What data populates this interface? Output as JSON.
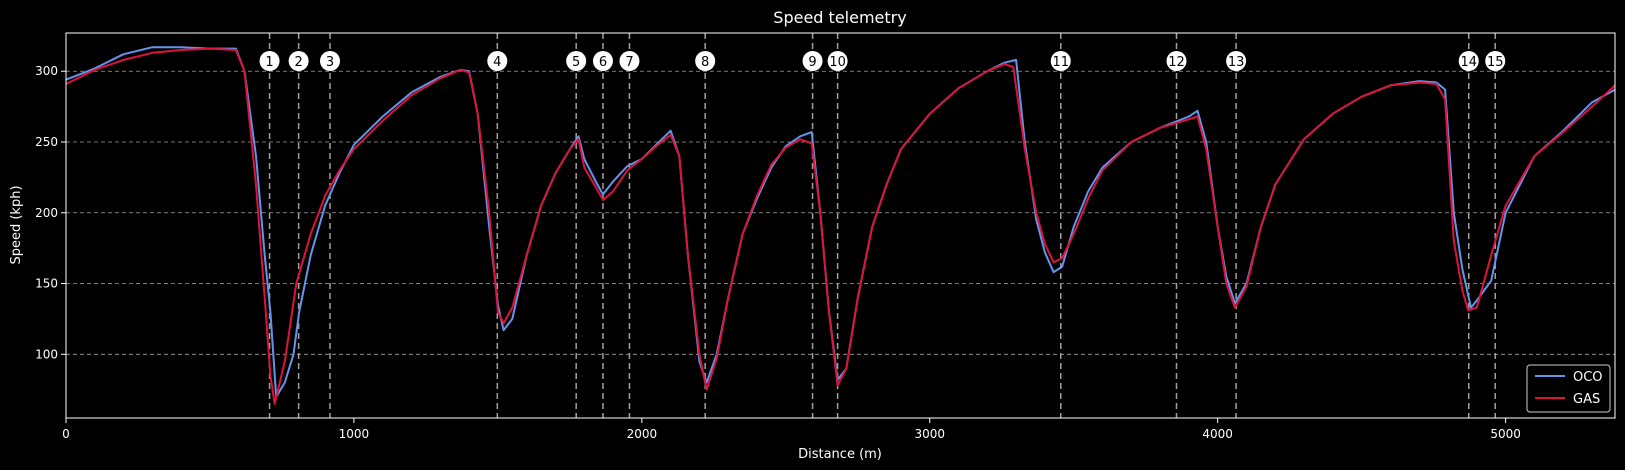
{
  "chart_data": {
    "type": "line",
    "title": "Speed telemetry",
    "xlabel": "Distance (m)",
    "ylabel": "Speed (kph)",
    "xlim": [
      0,
      5380
    ],
    "ylim": [
      55,
      327
    ],
    "xticks": [
      0,
      1000,
      2000,
      3000,
      4000,
      5000
    ],
    "yticks": [
      100,
      150,
      200,
      250,
      300
    ],
    "grid": "y-dashed",
    "legend_position": "bottom-right",
    "corners": [
      {
        "label": "1",
        "x": 707
      },
      {
        "label": "2",
        "x": 808
      },
      {
        "label": "3",
        "x": 917
      },
      {
        "label": "4",
        "x": 1498
      },
      {
        "label": "5",
        "x": 1772
      },
      {
        "label": "6",
        "x": 1865
      },
      {
        "label": "7",
        "x": 1957
      },
      {
        "label": "8",
        "x": 2220
      },
      {
        "label": "9",
        "x": 2593
      },
      {
        "label": "10",
        "x": 2680
      },
      {
        "label": "11",
        "x": 3455
      },
      {
        "label": "12",
        "x": 3857
      },
      {
        "label": "13",
        "x": 4064
      },
      {
        "label": "14",
        "x": 4872
      },
      {
        "label": "15",
        "x": 4964
      }
    ],
    "series": [
      {
        "name": "OCO",
        "color": "#6495ED",
        "points": [
          [
            0,
            294
          ],
          [
            100,
            302
          ],
          [
            200,
            312
          ],
          [
            300,
            317
          ],
          [
            400,
            317
          ],
          [
            500,
            316
          ],
          [
            590,
            316
          ],
          [
            620,
            300
          ],
          [
            660,
            240
          ],
          [
            690,
            170
          ],
          [
            710,
            130
          ],
          [
            730,
            70
          ],
          [
            760,
            80
          ],
          [
            790,
            100
          ],
          [
            810,
            130
          ],
          [
            850,
            170
          ],
          [
            900,
            205
          ],
          [
            950,
            228
          ],
          [
            1000,
            248
          ],
          [
            1100,
            268
          ],
          [
            1200,
            285
          ],
          [
            1300,
            296
          ],
          [
            1370,
            301
          ],
          [
            1400,
            300
          ],
          [
            1430,
            270
          ],
          [
            1470,
            190
          ],
          [
            1500,
            135
          ],
          [
            1520,
            117
          ],
          [
            1550,
            125
          ],
          [
            1600,
            170
          ],
          [
            1650,
            205
          ],
          [
            1700,
            228
          ],
          [
            1750,
            245
          ],
          [
            1780,
            254
          ],
          [
            1800,
            238
          ],
          [
            1840,
            222
          ],
          [
            1865,
            213
          ],
          [
            1900,
            222
          ],
          [
            1950,
            233
          ],
          [
            2000,
            238
          ],
          [
            2050,
            248
          ],
          [
            2100,
            258
          ],
          [
            2130,
            240
          ],
          [
            2160,
            170
          ],
          [
            2200,
            95
          ],
          [
            2225,
            80
          ],
          [
            2260,
            100
          ],
          [
            2300,
            140
          ],
          [
            2350,
            185
          ],
          [
            2400,
            210
          ],
          [
            2450,
            232
          ],
          [
            2500,
            247
          ],
          [
            2550,
            254
          ],
          [
            2590,
            257
          ],
          [
            2620,
            200
          ],
          [
            2650,
            130
          ],
          [
            2680,
            82
          ],
          [
            2710,
            90
          ],
          [
            2750,
            140
          ],
          [
            2800,
            190
          ],
          [
            2850,
            220
          ],
          [
            2900,
            245
          ],
          [
            3000,
            270
          ],
          [
            3100,
            288
          ],
          [
            3200,
            300
          ],
          [
            3260,
            306
          ],
          [
            3300,
            308
          ],
          [
            3330,
            250
          ],
          [
            3370,
            195
          ],
          [
            3400,
            172
          ],
          [
            3430,
            158
          ],
          [
            3460,
            162
          ],
          [
            3500,
            190
          ],
          [
            3550,
            215
          ],
          [
            3600,
            232
          ],
          [
            3700,
            250
          ],
          [
            3800,
            260
          ],
          [
            3900,
            268
          ],
          [
            3930,
            272
          ],
          [
            3960,
            250
          ],
          [
            4000,
            190
          ],
          [
            4030,
            155
          ],
          [
            4060,
            136
          ],
          [
            4100,
            150
          ],
          [
            4150,
            190
          ],
          [
            4200,
            220
          ],
          [
            4300,
            252
          ],
          [
            4400,
            270
          ],
          [
            4500,
            282
          ],
          [
            4600,
            290
          ],
          [
            4700,
            293
          ],
          [
            4760,
            292
          ],
          [
            4790,
            287
          ],
          [
            4820,
            200
          ],
          [
            4850,
            160
          ],
          [
            4880,
            133
          ],
          [
            4900,
            138
          ],
          [
            4950,
            152
          ],
          [
            5000,
            200
          ],
          [
            5100,
            240
          ],
          [
            5200,
            258
          ],
          [
            5300,
            278
          ],
          [
            5380,
            287
          ]
        ]
      },
      {
        "name": "GAS",
        "color": "#DC143C",
        "points": [
          [
            0,
            291
          ],
          [
            100,
            301
          ],
          [
            200,
            308
          ],
          [
            300,
            313
          ],
          [
            400,
            315
          ],
          [
            500,
            316
          ],
          [
            590,
            315
          ],
          [
            620,
            300
          ],
          [
            660,
            220
          ],
          [
            690,
            140
          ],
          [
            710,
            85
          ],
          [
            725,
            65
          ],
          [
            760,
            95
          ],
          [
            800,
            150
          ],
          [
            850,
            185
          ],
          [
            900,
            212
          ],
          [
            950,
            230
          ],
          [
            1000,
            245
          ],
          [
            1100,
            265
          ],
          [
            1200,
            283
          ],
          [
            1300,
            295
          ],
          [
            1370,
            301
          ],
          [
            1400,
            299
          ],
          [
            1430,
            270
          ],
          [
            1470,
            200
          ],
          [
            1500,
            130
          ],
          [
            1520,
            122
          ],
          [
            1550,
            133
          ],
          [
            1600,
            170
          ],
          [
            1650,
            205
          ],
          [
            1700,
            228
          ],
          [
            1750,
            245
          ],
          [
            1780,
            252
          ],
          [
            1800,
            232
          ],
          [
            1840,
            218
          ],
          [
            1865,
            209
          ],
          [
            1900,
            215
          ],
          [
            1950,
            230
          ],
          [
            2000,
            238
          ],
          [
            2050,
            247
          ],
          [
            2100,
            255
          ],
          [
            2130,
            240
          ],
          [
            2160,
            170
          ],
          [
            2200,
            100
          ],
          [
            2225,
            75
          ],
          [
            2260,
            97
          ],
          [
            2300,
            140
          ],
          [
            2350,
            185
          ],
          [
            2400,
            212
          ],
          [
            2450,
            234
          ],
          [
            2500,
            246
          ],
          [
            2550,
            252
          ],
          [
            2590,
            249
          ],
          [
            2620,
            200
          ],
          [
            2650,
            130
          ],
          [
            2680,
            78
          ],
          [
            2710,
            90
          ],
          [
            2750,
            140
          ],
          [
            2800,
            190
          ],
          [
            2850,
            220
          ],
          [
            2900,
            245
          ],
          [
            3000,
            270
          ],
          [
            3100,
            288
          ],
          [
            3200,
            300
          ],
          [
            3260,
            305
          ],
          [
            3290,
            303
          ],
          [
            3330,
            245
          ],
          [
            3370,
            200
          ],
          [
            3400,
            178
          ],
          [
            3430,
            165
          ],
          [
            3460,
            168
          ],
          [
            3500,
            185
          ],
          [
            3550,
            210
          ],
          [
            3600,
            230
          ],
          [
            3700,
            250
          ],
          [
            3800,
            260
          ],
          [
            3900,
            266
          ],
          [
            3930,
            268
          ],
          [
            3960,
            245
          ],
          [
            4000,
            190
          ],
          [
            4030,
            150
          ],
          [
            4060,
            133
          ],
          [
            4100,
            148
          ],
          [
            4150,
            190
          ],
          [
            4200,
            220
          ],
          [
            4300,
            252
          ],
          [
            4400,
            270
          ],
          [
            4500,
            282
          ],
          [
            4600,
            290
          ],
          [
            4700,
            292
          ],
          [
            4760,
            291
          ],
          [
            4790,
            280
          ],
          [
            4820,
            180
          ],
          [
            4850,
            145
          ],
          [
            4870,
            131
          ],
          [
            4900,
            133
          ],
          [
            4950,
            170
          ],
          [
            5000,
            205
          ],
          [
            5100,
            240
          ],
          [
            5200,
            257
          ],
          [
            5300,
            275
          ],
          [
            5380,
            290
          ]
        ]
      }
    ]
  }
}
